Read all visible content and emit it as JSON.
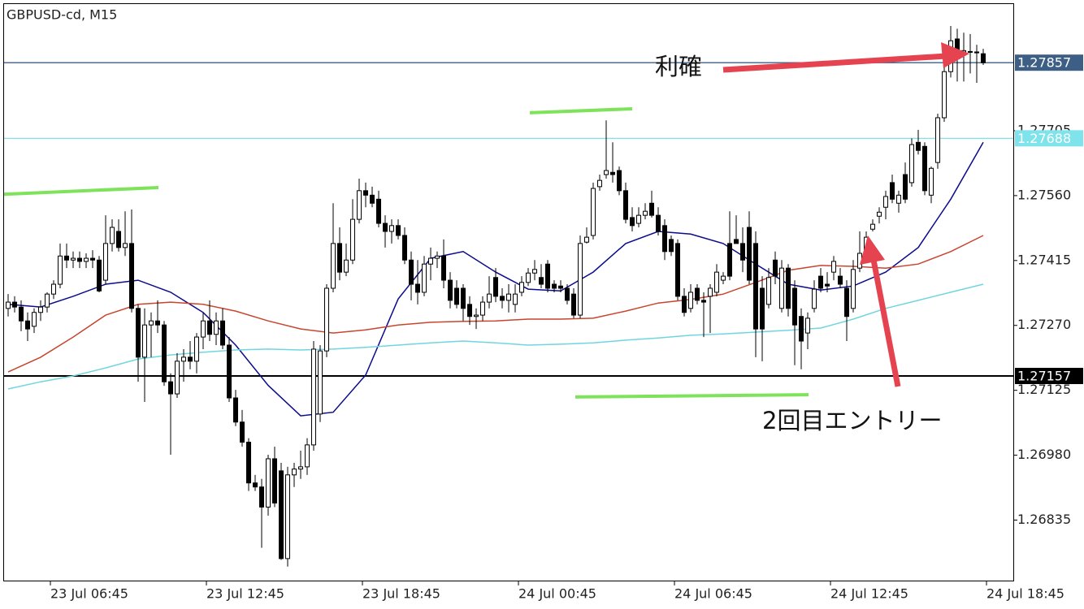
{
  "chart_data": {
    "type": "candlestick",
    "title": "GBPUSD-cd, M15",
    "xlim": [
      -0.625,
      154.75
    ],
    "ylim": [
      1.26698,
      1.27988
    ],
    "grid": false,
    "xticks": [
      {
        "value": 6.5,
        "label": "23 Jul 06:45"
      },
      {
        "value": 30.5,
        "label": "23 Jul 12:45"
      },
      {
        "value": 54.5,
        "label": "23 Jul 18:45"
      },
      {
        "value": 78.5,
        "label": "24 Jul 00:45"
      },
      {
        "value": 102.5,
        "label": "24 Jul 06:45"
      },
      {
        "value": 126.5,
        "label": "24 Jul 12:45"
      },
      {
        "value": 150.5,
        "label": "24 Jul 18:45"
      }
    ],
    "yticks": [
      1.27705,
      {
        "value": 1.2756,
        "label": "1.27560"
      },
      1.27415,
      {
        "value": 1.2727,
        "label": "1.27270"
      },
      1.27125,
      {
        "value": 1.2698,
        "label": "1.26980"
      },
      1.26835
    ],
    "up_color": "#ffffff",
    "down_color": "#000000",
    "ohlc": [
      [
        1.27308,
        1.2734,
        1.2729,
        1.27322
      ],
      [
        1.27322,
        1.27335,
        1.27299,
        1.27311
      ],
      [
        1.27311,
        1.27326,
        1.27257,
        1.2728
      ],
      [
        1.2728,
        1.27299,
        1.27235,
        1.27262
      ],
      [
        1.27268,
        1.27308,
        1.27253,
        1.27299
      ],
      [
        1.27299,
        1.27326,
        1.2728,
        1.27311
      ],
      [
        1.27311,
        1.27344,
        1.27299,
        1.2734
      ],
      [
        1.2734,
        1.27371,
        1.27329,
        1.27362
      ],
      [
        1.27362,
        1.27453,
        1.27353,
        1.27425
      ],
      [
        1.27425,
        1.27453,
        1.27398,
        1.27416
      ],
      [
        1.27416,
        1.27435,
        1.27398,
        1.2742
      ],
      [
        1.2742,
        1.27435,
        1.27398,
        1.27413
      ],
      [
        1.27413,
        1.27431,
        1.27398,
        1.2742
      ],
      [
        1.2742,
        1.27438,
        1.27398,
        1.27416
      ],
      [
        1.27416,
        1.27425,
        1.27344,
        1.27347
      ],
      [
        1.27371,
        1.27516,
        1.27362,
        1.27453
      ],
      [
        1.27453,
        1.27507,
        1.27435,
        1.27489
      ],
      [
        1.2748,
        1.27507,
        1.27435,
        1.27444
      ],
      [
        1.27444,
        1.27525,
        1.27425,
        1.27453
      ],
      [
        1.27453,
        1.27529,
        1.27299,
        1.27308
      ],
      [
        1.27308,
        1.27317,
        1.27144,
        1.27199
      ],
      [
        1.27199,
        1.27308,
        1.27099,
        1.27271
      ],
      [
        1.27271,
        1.27299,
        1.27199,
        1.2728
      ],
      [
        1.2728,
        1.27326,
        1.27253,
        1.27271
      ],
      [
        1.27271,
        1.2728,
        1.27135,
        1.27144
      ],
      [
        1.27144,
        1.27163,
        1.26981,
        1.27117
      ],
      [
        1.27117,
        1.27208,
        1.27108,
        1.2719
      ],
      [
        1.2719,
        1.27217,
        1.27144,
        1.27199
      ],
      [
        1.27199,
        1.27235,
        1.27172,
        1.2719
      ],
      [
        1.2719,
        1.27253,
        1.27163,
        1.27244
      ],
      [
        1.27244,
        1.27299,
        1.27217,
        1.2728
      ],
      [
        1.2728,
        1.27326,
        1.27235,
        1.2725
      ],
      [
        1.2725,
        1.27299,
        1.27226,
        1.2728
      ],
      [
        1.2728,
        1.27308,
        1.27217,
        1.27226
      ],
      [
        1.27226,
        1.27244,
        1.27099,
        1.27108
      ],
      [
        1.27108,
        1.27126,
        1.27045,
        1.27054
      ],
      [
        1.27054,
        1.27081,
        1.26999,
        1.27009
      ],
      [
        1.27009,
        1.27018,
        1.269,
        1.26918
      ],
      [
        1.26918,
        1.26936,
        1.269,
        1.26909
      ],
      [
        1.26909,
        1.26927,
        1.26773,
        1.26864
      ],
      [
        1.26864,
        1.26981,
        1.26845,
        1.26972
      ],
      [
        1.26972,
        1.26999,
        1.26864,
        1.26873
      ],
      [
        1.26945,
        1.26963,
        1.26746,
        1.26749
      ],
      [
        1.26749,
        1.26954,
        1.26731,
        1.26936
      ],
      [
        1.26936,
        1.26963,
        1.26909,
        1.26949
      ],
      [
        1.26949,
        1.2699,
        1.26927,
        1.26954
      ],
      [
        1.26954,
        1.27018,
        1.26936,
        1.27003
      ],
      [
        1.27003,
        1.27235,
        1.2699,
        1.27217
      ],
      [
        1.27072,
        1.27226,
        1.27054,
        1.27213
      ],
      [
        1.27213,
        1.27362,
        1.27199,
        1.27353
      ],
      [
        1.27353,
        1.27543,
        1.27344,
        1.27453
      ],
      [
        1.27453,
        1.27489,
        1.27371,
        1.27389
      ],
      [
        1.27389,
        1.27453,
        1.2738,
        1.27416
      ],
      [
        1.27416,
        1.27552,
        1.27407,
        1.27507
      ],
      [
        1.27507,
        1.27598,
        1.27498,
        1.27571
      ],
      [
        1.27571,
        1.27589,
        1.27534,
        1.27561
      ],
      [
        1.27561,
        1.2758,
        1.27534,
        1.27543
      ],
      [
        1.27552,
        1.27571,
        1.27489,
        1.27498
      ],
      [
        1.27498,
        1.27516,
        1.27444,
        1.2748
      ],
      [
        1.2748,
        1.27507,
        1.27453,
        1.27493
      ],
      [
        1.27493,
        1.27507,
        1.27462,
        1.27471
      ],
      [
        1.27471,
        1.27489,
        1.27407,
        1.27416
      ],
      [
        1.27416,
        1.27435,
        1.27326,
        1.27362
      ],
      [
        1.27362,
        1.27416,
        1.27317,
        1.27344
      ],
      [
        1.27344,
        1.27425,
        1.27335,
        1.27407
      ],
      [
        1.27407,
        1.27444,
        1.27371,
        1.2742
      ],
      [
        1.2742,
        1.27435,
        1.27398,
        1.27425
      ],
      [
        1.27425,
        1.27462,
        1.27353,
        1.27371
      ],
      [
        1.27371,
        1.27389,
        1.27308,
        1.27326
      ],
      [
        1.27353,
        1.27371,
        1.27308,
        1.27317
      ],
      [
        1.27353,
        1.27362,
        1.2728,
        1.27308
      ],
      [
        1.27317,
        1.27335,
        1.27271,
        1.2729
      ],
      [
        1.2729,
        1.27308,
        1.27262,
        1.27293
      ],
      [
        1.27293,
        1.27335,
        1.2728,
        1.27322
      ],
      [
        1.27322,
        1.2738,
        1.27308,
        1.2734
      ],
      [
        1.27377,
        1.27398,
        1.27322,
        1.27335
      ],
      [
        1.27335,
        1.27353,
        1.27308,
        1.27326
      ],
      [
        1.27326,
        1.27362,
        1.27299,
        1.2734
      ],
      [
        1.27317,
        1.27362,
        1.27299,
        1.2734
      ],
      [
        1.27344,
        1.2738,
        1.27335,
        1.27366
      ],
      [
        1.27366,
        1.27398,
        1.27358,
        1.27387
      ],
      [
        1.27387,
        1.27416,
        1.27371,
        1.27395
      ],
      [
        1.27377,
        1.27407,
        1.27353,
        1.27362
      ],
      [
        1.27407,
        1.27416,
        1.27344,
        1.27353
      ],
      [
        1.27362,
        1.27371,
        1.27344,
        1.27353
      ],
      [
        1.27358,
        1.27371,
        1.27344,
        1.27353
      ],
      [
        1.27353,
        1.27362,
        1.27317,
        1.27326
      ],
      [
        1.2734,
        1.27353,
        1.27286,
        1.27293
      ],
      [
        1.27293,
        1.27471,
        1.27286,
        1.27453
      ],
      [
        1.27456,
        1.27489,
        1.27453,
        1.27467
      ],
      [
        1.27471,
        1.27589,
        1.27462,
        1.27576
      ],
      [
        1.2758,
        1.27607,
        1.27571,
        1.27594
      ],
      [
        1.27607,
        1.27728,
        1.27598,
        1.27616
      ],
      [
        1.27612,
        1.27679,
        1.27589,
        1.27607
      ],
      [
        1.27616,
        1.27625,
        1.27561,
        1.27571
      ],
      [
        1.27571,
        1.27589,
        1.27498,
        1.27507
      ],
      [
        1.27511,
        1.27534,
        1.2748,
        1.27493
      ],
      [
        1.27498,
        1.27534,
        1.27489,
        1.27516
      ],
      [
        1.27516,
        1.27543,
        1.27507,
        1.27525
      ],
      [
        1.27543,
        1.27571,
        1.27511,
        1.27516
      ],
      [
        1.27516,
        1.27534,
        1.27471,
        1.2748
      ],
      [
        1.27493,
        1.27507,
        1.27416,
        1.27435
      ],
      [
        1.27462,
        1.27471,
        1.27425,
        1.27435
      ],
      [
        1.27453,
        1.27462,
        1.27326,
        1.27335
      ],
      [
        1.27335,
        1.27353,
        1.2729,
        1.27299
      ],
      [
        1.27308,
        1.27362,
        1.27299,
        1.27344
      ],
      [
        1.27353,
        1.27362,
        1.27317,
        1.27326
      ],
      [
        1.27326,
        1.27344,
        1.27244,
        1.27322
      ],
      [
        1.27335,
        1.27362,
        1.27253,
        1.27353
      ],
      [
        1.27344,
        1.27407,
        1.27335,
        1.27389
      ],
      [
        1.27371,
        1.27389,
        1.27362,
        1.2738
      ],
      [
        1.27453,
        1.27525,
        1.27371,
        1.2738
      ],
      [
        1.27462,
        1.27516,
        1.27453,
        1.27453
      ],
      [
        1.27453,
        1.27489,
        1.27389,
        1.27416
      ],
      [
        1.27489,
        1.27525,
        1.27362,
        1.27371
      ],
      [
        1.27453,
        1.2748,
        1.27199,
        1.27262
      ],
      [
        1.27353,
        1.2738,
        1.2719,
        1.27262
      ],
      [
        1.27317,
        1.27398,
        1.27308,
        1.27377
      ],
      [
        1.27416,
        1.27435,
        1.27362,
        1.2738
      ],
      [
        1.27308,
        1.27416,
        1.27299,
        1.27398
      ],
      [
        1.27398,
        1.27407,
        1.2729,
        1.27308
      ],
      [
        1.27353,
        1.27371,
        1.27181,
        1.27271
      ],
      [
        1.2729,
        1.27308,
        1.27172,
        1.27235
      ],
      [
        1.27253,
        1.27299,
        1.27217,
        1.27286
      ],
      [
        1.27308,
        1.27371,
        1.27299,
        1.27351
      ],
      [
        1.2738,
        1.27398,
        1.27344,
        1.27353
      ],
      [
        1.27362,
        1.27389,
        1.27344,
        1.27358
      ],
      [
        1.27389,
        1.27425,
        1.27371,
        1.27413
      ],
      [
        1.2738,
        1.27398,
        1.27353,
        1.27362
      ],
      [
        1.27353,
        1.27371,
        1.27235,
        1.2729
      ],
      [
        1.27308,
        1.27416,
        1.27299,
        1.27395
      ],
      [
        1.27398,
        1.2748,
        1.27389,
        1.27431
      ],
      [
        1.27435,
        1.2748,
        1.27425,
        1.27467
      ],
      [
        1.27485,
        1.27507,
        1.2748,
        1.27496
      ],
      [
        1.27514,
        1.27534,
        1.27498,
        1.27523
      ],
      [
        1.27534,
        1.27571,
        1.27507,
        1.27558
      ],
      [
        1.27589,
        1.27607,
        1.27543,
        1.27552
      ],
      [
        1.27543,
        1.27571,
        1.27522,
        1.27561
      ],
      [
        1.27607,
        1.27634,
        1.27543,
        1.27552
      ],
      [
        1.27589,
        1.27688,
        1.2758,
        1.27674
      ],
      [
        1.27679,
        1.27707,
        1.27652,
        1.27661
      ],
      [
        1.2767,
        1.27679,
        1.27561,
        1.27571
      ],
      [
        1.27561,
        1.27625,
        1.27543,
        1.27621
      ],
      [
        1.27634,
        1.27743,
        1.2762,
        1.27734
      ],
      [
        1.27734,
        1.27852,
        1.27725,
        1.27837
      ],
      [
        1.27837,
        1.27939,
        1.27824,
        1.27906
      ],
      [
        1.2791,
        1.27933,
        1.27815,
        1.2787
      ],
      [
        1.27881,
        1.27924,
        1.27815,
        1.27884
      ],
      [
        1.27882,
        1.27921,
        1.27833,
        1.27881
      ],
      [
        1.27881,
        1.27897,
        1.27812,
        1.27879
      ],
      [
        1.27877,
        1.27888,
        1.27852,
        1.27857
      ]
    ],
    "ma_x": [
      0,
      5,
      10,
      15,
      20,
      25,
      30,
      35,
      40,
      45,
      50,
      55,
      60,
      65,
      70,
      75,
      80,
      85,
      90,
      95,
      100,
      105,
      110,
      115,
      120,
      125,
      130,
      135,
      140,
      145,
      150
    ],
    "moving_averages": [
      {
        "color": "#0b0b8c",
        "values": [
          1.27317,
          1.27311,
          1.27335,
          1.27362,
          1.27371,
          1.27344,
          1.27299,
          1.27226,
          1.27136,
          1.27068,
          1.27076,
          1.27159,
          1.27329,
          1.2742,
          1.27435,
          1.27389,
          1.27351,
          1.27347,
          1.27389,
          1.27453,
          1.2748,
          1.27474,
          1.27453,
          1.27407,
          1.27362,
          1.27349,
          1.27358,
          1.27389,
          1.27444,
          1.27552,
          1.27679
        ]
      },
      {
        "color": "#c8452e",
        "values": [
          1.27166,
          1.27199,
          1.27244,
          1.27293,
          1.27317,
          1.27322,
          1.27317,
          1.27302,
          1.2728,
          1.27262,
          1.27253,
          1.2726,
          1.27271,
          1.27277,
          1.27279,
          1.2728,
          1.27284,
          1.27284,
          1.27286,
          1.27302,
          1.2732,
          1.27328,
          1.2734,
          1.27366,
          1.27393,
          1.27404,
          1.27402,
          1.27398,
          1.27407,
          1.27435,
          1.27471
        ]
      },
      {
        "color": "#6fd6e0",
        "values": [
          1.27128,
          1.27144,
          1.27157,
          1.27175,
          1.27195,
          1.27204,
          1.2721,
          1.27215,
          1.27217,
          1.27215,
          1.27217,
          1.27221,
          1.27226,
          1.27231,
          1.27235,
          1.27231,
          1.27226,
          1.27228,
          1.27231,
          1.27237,
          1.27242,
          1.27248,
          1.27251,
          1.27255,
          1.27259,
          1.27264,
          1.27284,
          1.27308,
          1.27326,
          1.27344,
          1.27362
        ]
      }
    ],
    "trendlines": [
      {
        "color": "#7ee35a",
        "x": [
          -0.625,
          23.125
        ],
        "y": [
          1.27563,
          1.27578
        ]
      },
      {
        "color": "#7ee35a",
        "x": [
          80.25,
          96
        ],
        "y": [
          1.27745,
          1.27754
        ]
      },
      {
        "color": "#7ee35a",
        "x": [
          87.25,
          123.125
        ],
        "y": [
          1.2711,
          1.27115
        ]
      }
    ],
    "hlines": [
      {
        "value": 1.27857,
        "color": "#3d5f86"
      },
      {
        "value": 1.27688,
        "color": "#7fe3ec"
      },
      {
        "value": 1.27157,
        "color": "#000000"
      }
    ],
    "annotations": [
      "利確",
      "2回目エントリー"
    ]
  }
}
